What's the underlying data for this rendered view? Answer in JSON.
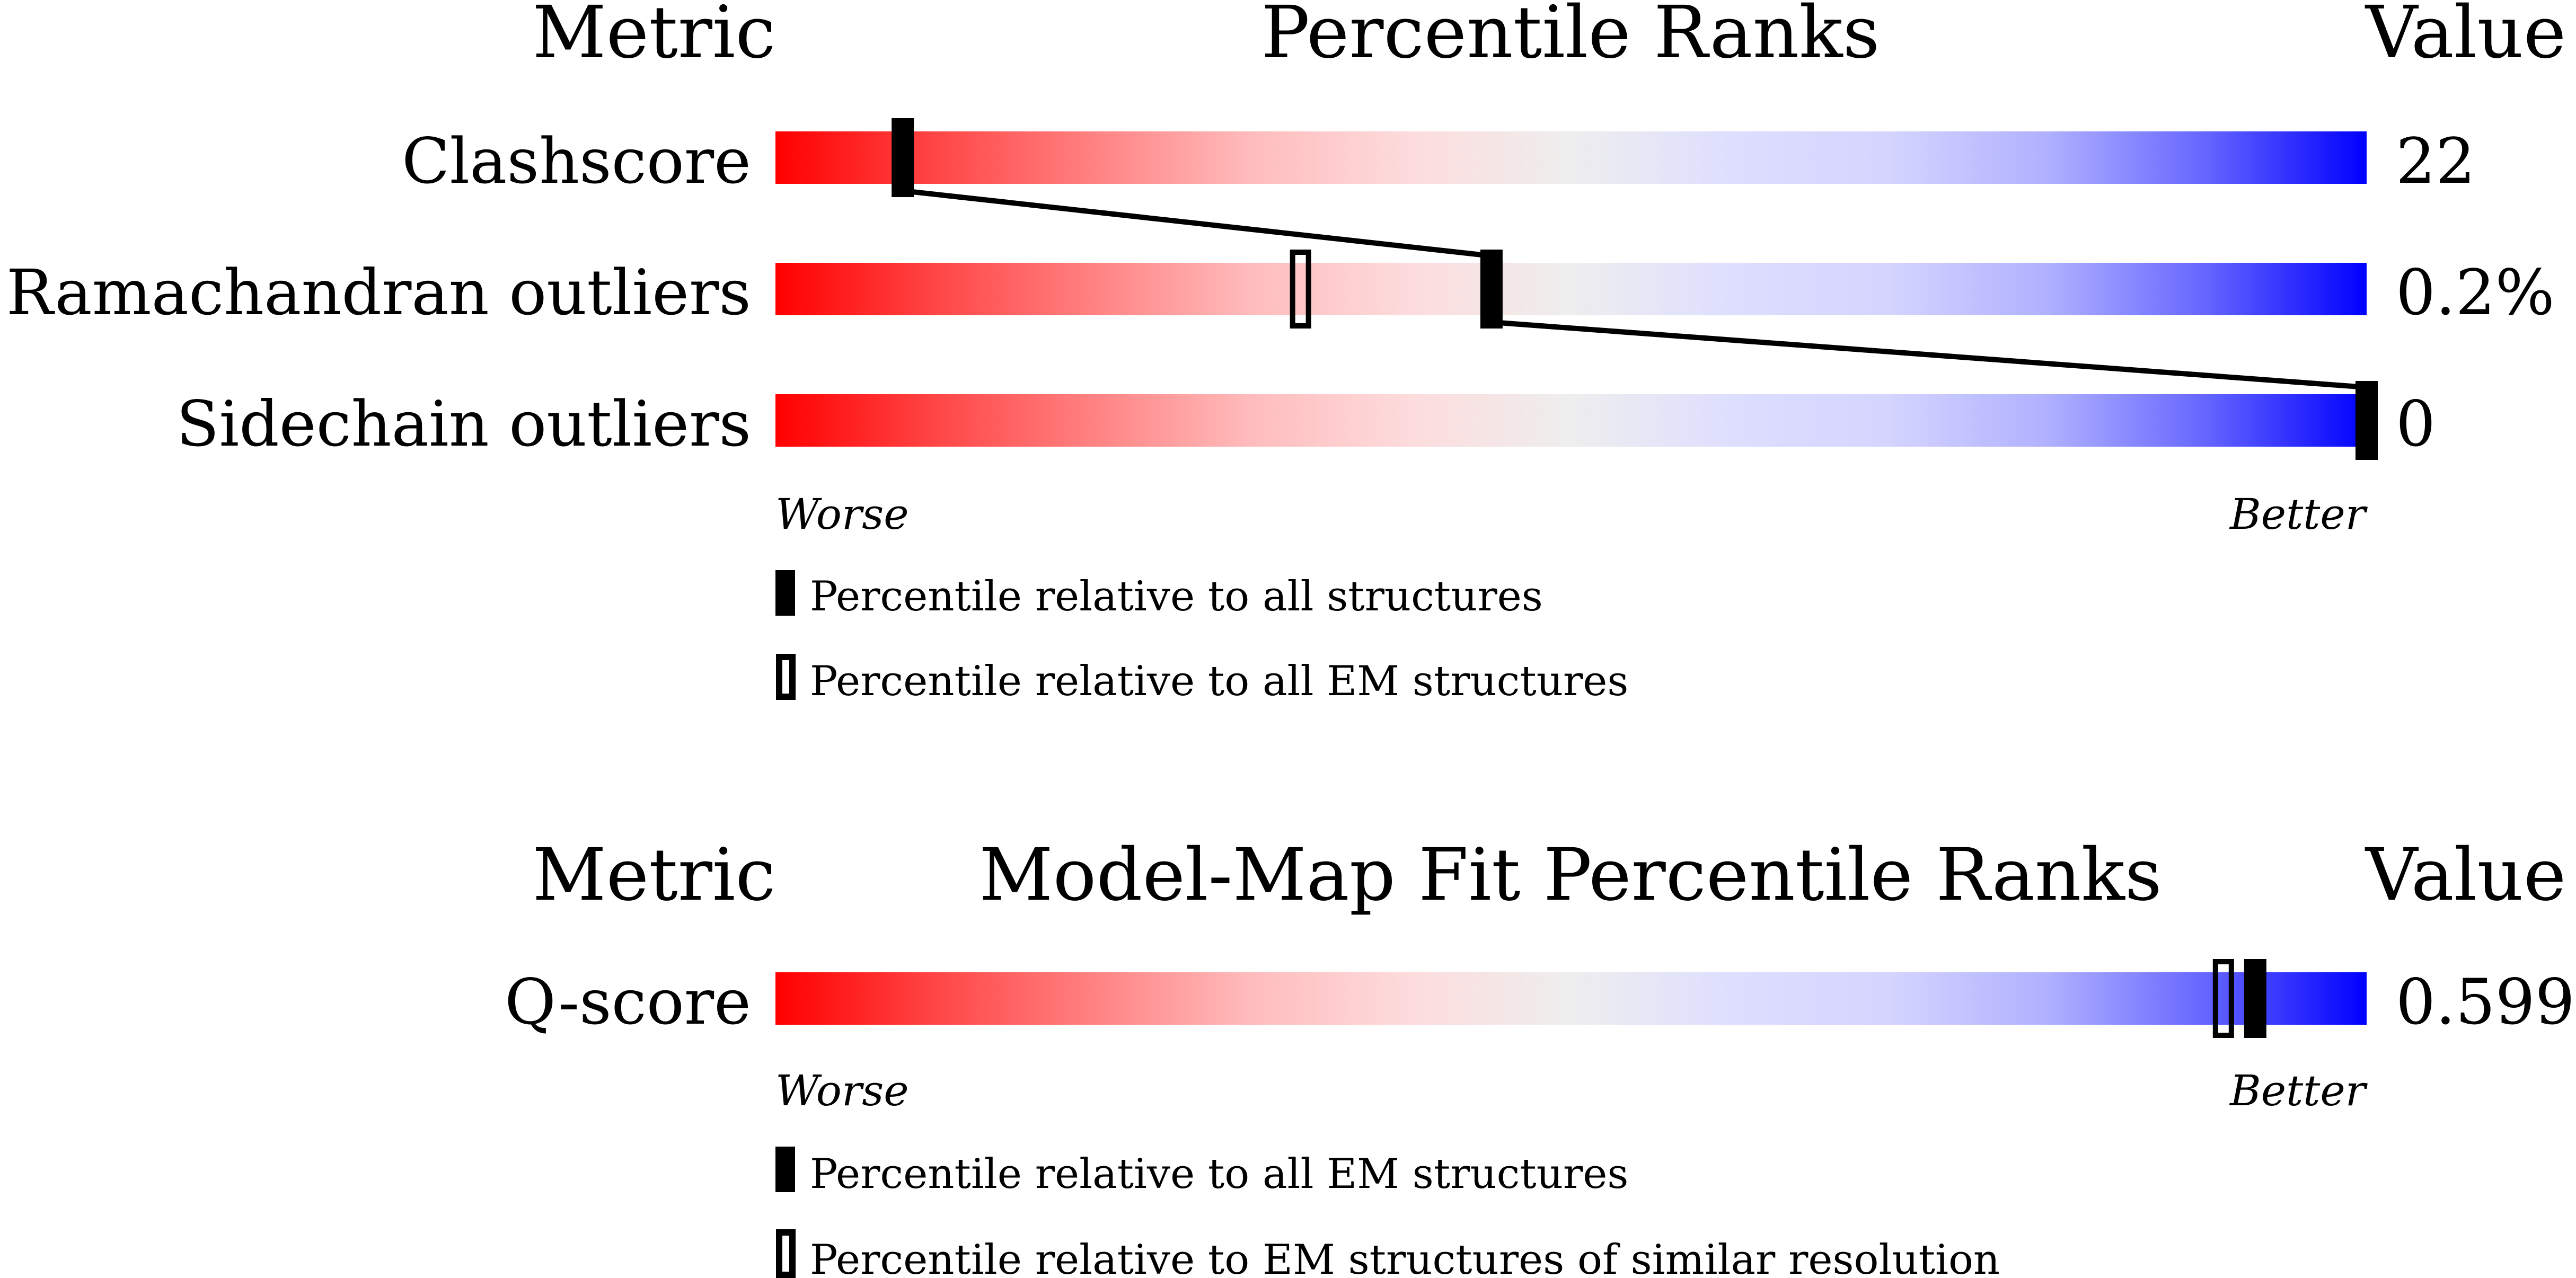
{
  "chart_data": [
    {
      "type": "bar",
      "title": "Percentile Ranks",
      "header_left": "Metric",
      "header_right": "Value",
      "axis_left": "Worse",
      "axis_right": "Better",
      "xlim": [
        0,
        100
      ],
      "gradient_colors": [
        "#ff0000",
        "#eeeeee",
        "#0000ff"
      ],
      "metrics": [
        {
          "name": "Clashscore",
          "value": "22",
          "percentile_all": 8,
          "percentile_em": null
        },
        {
          "name": "Ramachandran outliers",
          "value": "0.2%",
          "percentile_all": 45,
          "percentile_em": 33
        },
        {
          "name": "Sidechain outliers",
          "value": "0",
          "percentile_all": 100,
          "percentile_em": null
        }
      ],
      "legend": [
        {
          "marker": "filled",
          "label": "Percentile relative to all structures"
        },
        {
          "marker": "open",
          "label": "Percentile relative to all EM structures"
        }
      ],
      "connect_filled_markers": true
    },
    {
      "type": "bar",
      "title": "Model-Map Fit Percentile Ranks",
      "header_left": "Metric",
      "header_right": "Value",
      "axis_left": "Worse",
      "axis_right": "Better",
      "xlim": [
        0,
        100
      ],
      "gradient_colors": [
        "#ff0000",
        "#eeeeee",
        "#0000ff"
      ],
      "metrics": [
        {
          "name": "Q-score",
          "value": "0.599",
          "percentile_all": 93,
          "percentile_em": 91
        }
      ],
      "legend": [
        {
          "marker": "filled",
          "label": "Percentile relative to all EM structures"
        },
        {
          "marker": "open",
          "label": "Percentile relative to EM structures of similar resolution"
        }
      ],
      "connect_filled_markers": false
    }
  ]
}
